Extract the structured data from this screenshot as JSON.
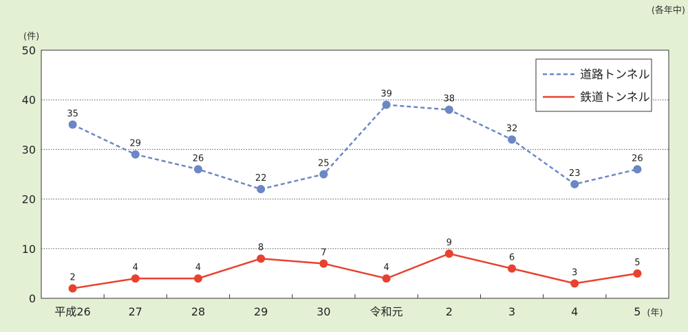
{
  "period_note": "(各年中)",
  "chart_data": {
    "type": "line",
    "y_unit": "(件)",
    "x_unit": "(年)",
    "categories": [
      "平成26",
      "27",
      "28",
      "29",
      "30",
      "令和元",
      "2",
      "3",
      "4",
      "5"
    ],
    "ylim": [
      0,
      50
    ],
    "yticks": [
      0,
      10,
      20,
      30,
      40,
      50
    ],
    "grid": "dotted horizontal",
    "legend_position": "top-right",
    "series": [
      {
        "name": "道路トンネル",
        "values": [
          35,
          29,
          26,
          22,
          25,
          39,
          38,
          32,
          23,
          26
        ],
        "color": "#6b87c4",
        "style": "dashed"
      },
      {
        "name": "鉄道トンネル",
        "values": [
          2,
          4,
          4,
          8,
          7,
          4,
          9,
          6,
          3,
          5
        ],
        "color": "#e8412f",
        "style": "solid"
      }
    ]
  }
}
